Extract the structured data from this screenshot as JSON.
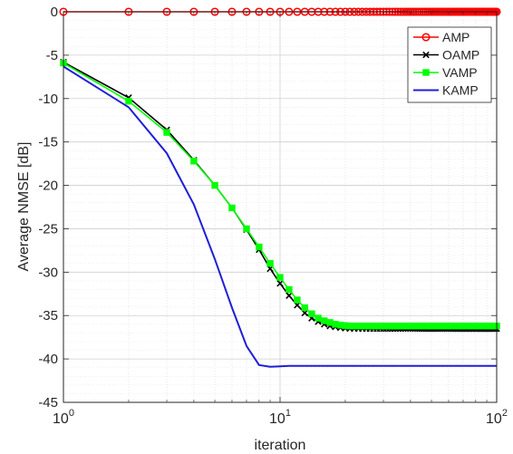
{
  "chart_data": {
    "type": "line",
    "xscale": "log",
    "xlim": [
      1,
      100
    ],
    "ylim": [
      -45,
      0
    ],
    "xlabel": "iteration",
    "ylabel": "Average NMSE [dB]",
    "grid": true,
    "minor_grid": true,
    "legend_position": "top-right",
    "yticks": [
      0,
      -5,
      -10,
      -15,
      -20,
      -25,
      -30,
      -35,
      -40,
      -45
    ],
    "ytick_labels": [
      "0",
      "-5",
      "-10",
      "-15",
      "-20",
      "-25",
      "-30",
      "-35",
      "-40",
      "-45"
    ],
    "xticks": [
      {
        "value": 1,
        "base": "10",
        "exp": "0"
      },
      {
        "value": 10,
        "base": "10",
        "exp": "1"
      },
      {
        "value": 100,
        "base": "10",
        "exp": "2"
      }
    ],
    "x": [
      1,
      2,
      3,
      4,
      5,
      6,
      7,
      8,
      9,
      10,
      11,
      12,
      13,
      14,
      15,
      16,
      17,
      18,
      19,
      20,
      21,
      22,
      23,
      24,
      25,
      26,
      27,
      28,
      29,
      30,
      31,
      32,
      33,
      34,
      35,
      36,
      37,
      38,
      39,
      40,
      41,
      42,
      43,
      44,
      45,
      46,
      47,
      48,
      49,
      50,
      51,
      52,
      53,
      54,
      55,
      56,
      57,
      58,
      59,
      60,
      61,
      62,
      63,
      64,
      65,
      66,
      67,
      68,
      69,
      70,
      71,
      72,
      73,
      74,
      75,
      76,
      77,
      78,
      79,
      80,
      81,
      82,
      83,
      84,
      85,
      86,
      87,
      88,
      89,
      90,
      91,
      92,
      93,
      94,
      95,
      96,
      97,
      98,
      99,
      100
    ],
    "series": [
      {
        "name": "AMP",
        "color": "#ff0000",
        "marker": "circle",
        "values": [
          0,
          0,
          0,
          0,
          0,
          0,
          0,
          0,
          0,
          0,
          0,
          0,
          0,
          0,
          0,
          0,
          0,
          0,
          0,
          0,
          0,
          0,
          0,
          0,
          0,
          0,
          0,
          0,
          0,
          0,
          0,
          0,
          0,
          0,
          0,
          0,
          0,
          0,
          0,
          0,
          0,
          0,
          0,
          0,
          0,
          0,
          0,
          0,
          0,
          0,
          0,
          0,
          0,
          0,
          0,
          0,
          0,
          0,
          0,
          0,
          0,
          0,
          0,
          0,
          0,
          0,
          0,
          0,
          0,
          0,
          0,
          0,
          0,
          0,
          0,
          0,
          0,
          0,
          0,
          0,
          0,
          0,
          0,
          0,
          0,
          0,
          0,
          0,
          0,
          0,
          0,
          0,
          0,
          0,
          0,
          0,
          0,
          0,
          0,
          0
        ]
      },
      {
        "name": "OAMP",
        "color": "#000000",
        "marker": "x",
        "values": [
          -5.8,
          -9.9,
          -13.6,
          -17.1,
          -20.0,
          -22.6,
          -25.1,
          -27.4,
          -29.6,
          -31.3,
          -32.7,
          -33.8,
          -34.7,
          -35.3,
          -35.7,
          -36.0,
          -36.2,
          -36.3,
          -36.4,
          -36.45,
          -36.5,
          -36.5,
          -36.5,
          -36.5,
          -36.5,
          -36.5,
          -36.5,
          -36.5,
          -36.5,
          -36.5,
          -36.5,
          -36.5,
          -36.5,
          -36.5,
          -36.5,
          -36.5,
          -36.5,
          -36.5,
          -36.5,
          -36.5,
          -36.5,
          -36.5,
          -36.5,
          -36.5,
          -36.5,
          -36.5,
          -36.5,
          -36.5,
          -36.5,
          -36.5,
          -36.5,
          -36.5,
          -36.5,
          -36.5,
          -36.5,
          -36.5,
          -36.5,
          -36.5,
          -36.5,
          -36.5,
          -36.5,
          -36.5,
          -36.5,
          -36.5,
          -36.5,
          -36.5,
          -36.5,
          -36.5,
          -36.5,
          -36.5,
          -36.5,
          -36.5,
          -36.5,
          -36.5,
          -36.5,
          -36.5,
          -36.5,
          -36.5,
          -36.5,
          -36.5,
          -36.5,
          -36.5,
          -36.5,
          -36.5,
          -36.5,
          -36.5,
          -36.5,
          -36.5,
          -36.5,
          -36.5,
          -36.5,
          -36.5,
          -36.5,
          -36.5,
          -36.5,
          -36.5,
          -36.5,
          -36.5,
          -36.5,
          -36.5
        ]
      },
      {
        "name": "VAMP",
        "color": "#00ff00",
        "marker": "square",
        "values": [
          -5.9,
          -10.3,
          -13.9,
          -17.2,
          -20.0,
          -22.6,
          -25.0,
          -27.1,
          -29.0,
          -30.6,
          -32.0,
          -33.2,
          -34.1,
          -34.8,
          -35.3,
          -35.6,
          -35.8,
          -36.0,
          -36.1,
          -36.15,
          -36.2,
          -36.2,
          -36.2,
          -36.2,
          -36.2,
          -36.2,
          -36.2,
          -36.2,
          -36.2,
          -36.2,
          -36.2,
          -36.2,
          -36.2,
          -36.2,
          -36.2,
          -36.2,
          -36.2,
          -36.2,
          -36.2,
          -36.2,
          -36.2,
          -36.2,
          -36.2,
          -36.2,
          -36.2,
          -36.2,
          -36.2,
          -36.2,
          -36.2,
          -36.2,
          -36.2,
          -36.2,
          -36.2,
          -36.2,
          -36.2,
          -36.2,
          -36.2,
          -36.2,
          -36.2,
          -36.2,
          -36.2,
          -36.2,
          -36.2,
          -36.2,
          -36.2,
          -36.2,
          -36.2,
          -36.2,
          -36.2,
          -36.2,
          -36.2,
          -36.2,
          -36.2,
          -36.2,
          -36.2,
          -36.2,
          -36.2,
          -36.2,
          -36.2,
          -36.2,
          -36.2,
          -36.2,
          -36.2,
          -36.2,
          -36.2,
          -36.2,
          -36.2,
          -36.2,
          -36.2,
          -36.2,
          -36.2,
          -36.2,
          -36.2,
          -36.2,
          -36.2,
          -36.2,
          -36.2,
          -36.2,
          -36.2,
          -36.2
        ]
      },
      {
        "name": "KAMP",
        "color": "#1f1fd6",
        "marker": "none",
        "values": [
          -6.3,
          -11.0,
          -16.3,
          -22.2,
          -28.5,
          -34.1,
          -38.5,
          -40.7,
          -40.9,
          -40.85,
          -40.8,
          -40.8,
          -40.8,
          -40.8,
          -40.8,
          -40.8,
          -40.8,
          -40.8,
          -40.8,
          -40.8,
          -40.8,
          -40.8,
          -40.8,
          -40.8,
          -40.8,
          -40.8,
          -40.8,
          -40.8,
          -40.8,
          -40.8,
          -40.8,
          -40.8,
          -40.8,
          -40.8,
          -40.8,
          -40.8,
          -40.8,
          -40.8,
          -40.8,
          -40.8,
          -40.8,
          -40.8,
          -40.8,
          -40.8,
          -40.8,
          -40.8,
          -40.8,
          -40.8,
          -40.8,
          -40.8,
          -40.8,
          -40.8,
          -40.8,
          -40.8,
          -40.8,
          -40.8,
          -40.8,
          -40.8,
          -40.8,
          -40.8,
          -40.8,
          -40.8,
          -40.8,
          -40.8,
          -40.8,
          -40.8,
          -40.8,
          -40.8,
          -40.8,
          -40.8,
          -40.8,
          -40.8,
          -40.8,
          -40.8,
          -40.8,
          -40.8,
          -40.8,
          -40.8,
          -40.8,
          -40.8,
          -40.8,
          -40.8,
          -40.8,
          -40.8,
          -40.8,
          -40.8,
          -40.8,
          -40.8,
          -40.8,
          -40.8,
          -40.8,
          -40.8,
          -40.8,
          -40.8,
          -40.8,
          -40.8,
          -40.8,
          -40.8,
          -40.8,
          -40.8
        ]
      }
    ]
  }
}
